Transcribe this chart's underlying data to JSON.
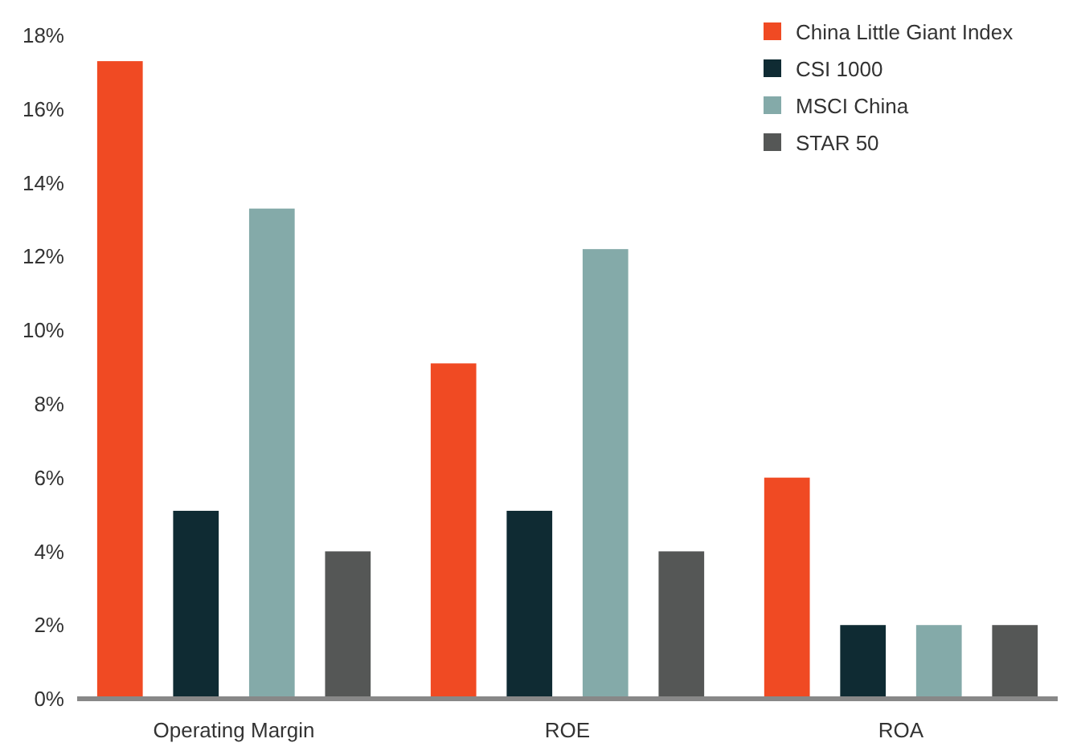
{
  "chart_data": {
    "type": "bar",
    "categories": [
      "Operating Margin",
      "ROE",
      "ROA"
    ],
    "series": [
      {
        "name": "China Little Giant Index",
        "color": "#f04a23",
        "values": [
          17.3,
          9.1,
          6.0
        ]
      },
      {
        "name": "CSI 1000",
        "color": "#0f2b33",
        "values": [
          5.1,
          5.1,
          2.0
        ]
      },
      {
        "name": "MSCI China",
        "color": "#84aaa9",
        "values": [
          13.3,
          12.2,
          2.0
        ]
      },
      {
        "name": "STAR 50",
        "color": "#555756",
        "values": [
          4.0,
          4.0,
          2.0
        ]
      }
    ],
    "ylim": [
      0,
      18
    ],
    "yticks": [
      {
        "value": 0,
        "label": "0%"
      },
      {
        "value": 2,
        "label": "2%"
      },
      {
        "value": 4,
        "label": "4%"
      },
      {
        "value": 6,
        "label": "6%"
      },
      {
        "value": 8,
        "label": "8%"
      },
      {
        "value": 10,
        "label": "10%"
      },
      {
        "value": 12,
        "label": "12%"
      },
      {
        "value": 14,
        "label": "14%"
      },
      {
        "value": 16,
        "label": "16%"
      },
      {
        "value": 18,
        "label": "18%"
      }
    ],
    "legend": "top right"
  }
}
